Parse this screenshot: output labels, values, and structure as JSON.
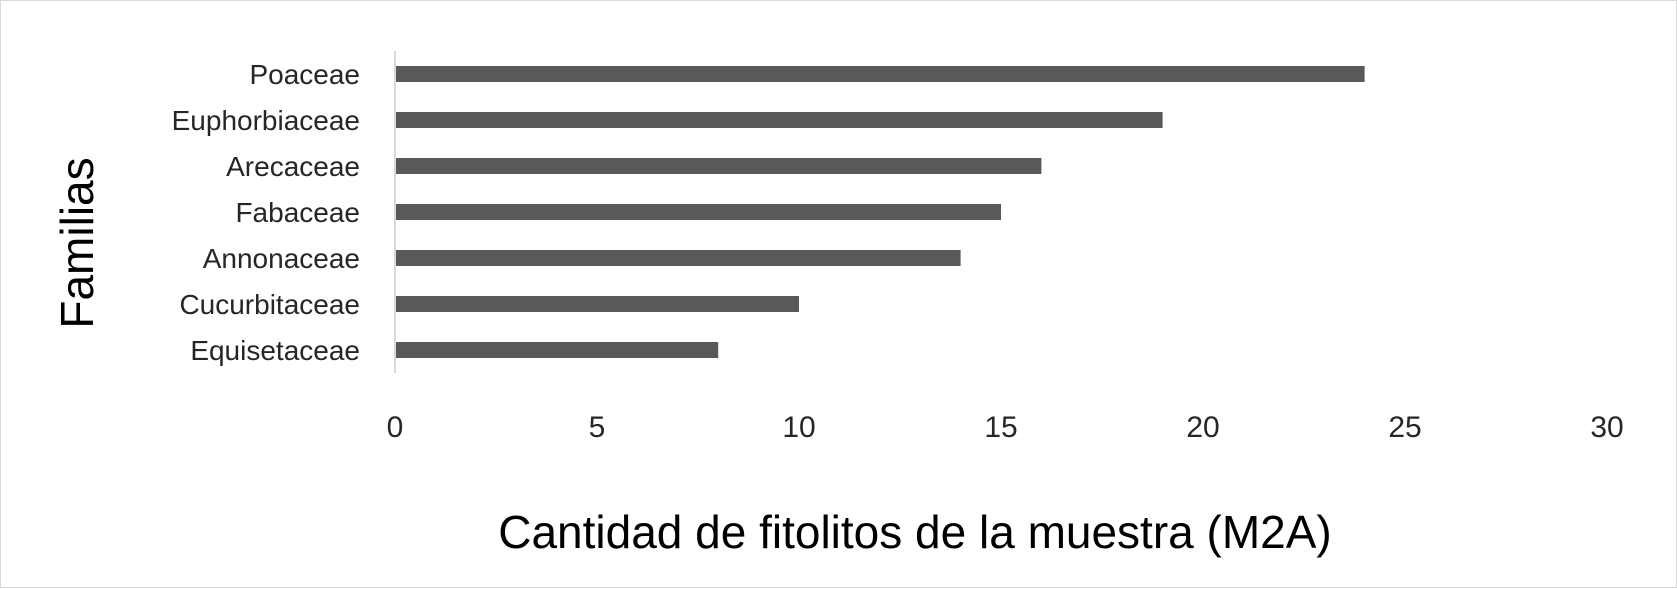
{
  "chart_data": {
    "type": "bar",
    "orientation": "horizontal",
    "categories": [
      "Poaceae",
      "Euphorbiaceae",
      "Arecaceae",
      "Fabaceae",
      "Annonaceae",
      "Cucurbitaceae",
      "Equisetaceae"
    ],
    "values": [
      24,
      19,
      16,
      15,
      14,
      10,
      8
    ],
    "xlabel": "Cantidad de fitolitos de la muestra (M2A)",
    "ylabel": "Familias",
    "xlim": [
      0,
      30
    ],
    "xticks": [
      "0",
      "5",
      "10",
      "15",
      "20",
      "25",
      "30"
    ],
    "grid": false,
    "legend": "none",
    "bar_color": "#595959"
  }
}
